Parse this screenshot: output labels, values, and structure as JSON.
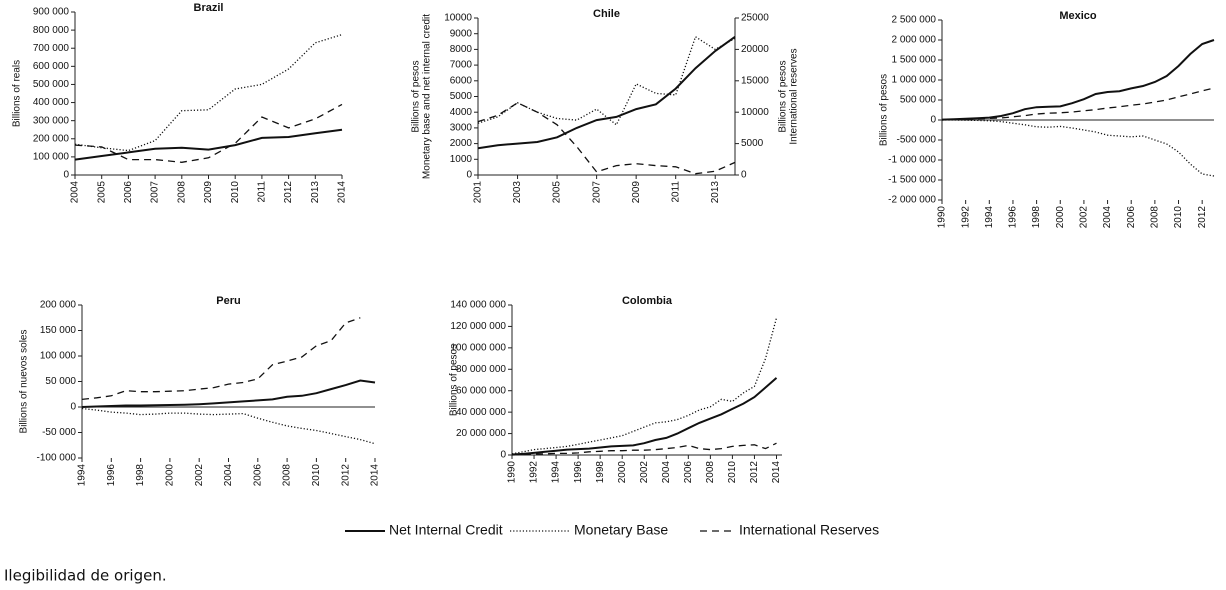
{
  "chart_data": [
    {
      "type": "line",
      "title": "Brazil",
      "ylabel": [
        "Billions of reals"
      ],
      "x": [
        2004,
        2005,
        2006,
        2007,
        2008,
        2009,
        2010,
        2011,
        2012,
        2013,
        2014
      ],
      "xlim": [
        2004,
        2014
      ],
      "xticks": [
        2004,
        2005,
        2006,
        2007,
        2008,
        2009,
        2010,
        2011,
        2012,
        2013,
        2014
      ],
      "ylim": [
        0,
        900000
      ],
      "yticks": [
        0,
        {
          "value": 100000,
          "label": "100 000"
        },
        {
          "value": 200000,
          "label": "200 000"
        },
        {
          "value": 300000,
          "label": "300 000"
        },
        {
          "value": 400000,
          "label": "400 000"
        },
        {
          "value": 500000,
          "label": "500 000"
        },
        {
          "value": 600000,
          "label": "600 000"
        },
        {
          "value": 700000,
          "label": "700 000"
        },
        {
          "value": 800000,
          "label": "800 000"
        },
        {
          "value": 900000,
          "label": "900 000"
        }
      ],
      "series": [
        {
          "name": "Net Internal Credit",
          "color": "#111111",
          "line_style": "solid",
          "values": [
            85000,
            105000,
            125000,
            145000,
            150000,
            140000,
            165000,
            205000,
            210000,
            230000,
            250000
          ]
        },
        {
          "name": "Monetary Base",
          "color": "#111111",
          "line_style": "dotted",
          "values": [
            170000,
            150000,
            135000,
            190000,
            355000,
            360000,
            475000,
            500000,
            585000,
            730000,
            775000
          ]
        },
        {
          "name": "International Reserves",
          "color": "#111111",
          "line_style": "dashed",
          "values": [
            165000,
            155000,
            85000,
            85000,
            70000,
            95000,
            175000,
            320000,
            260000,
            310000,
            390000
          ]
        }
      ]
    },
    {
      "type": "line",
      "title": "Chile",
      "ylabel": [
        "Billions of pesos",
        "Monetary base and net internal credit"
      ],
      "y2label": [
        "Billions of pesos",
        "International reserves"
      ],
      "x": [
        2001,
        2002,
        2003,
        2004,
        2005,
        2006,
        2007,
        2008,
        2009,
        2010,
        2011,
        2012,
        2013,
        2014
      ],
      "xlim": [
        2001,
        2014
      ],
      "xticks": [
        2001,
        2003,
        2005,
        2007,
        2009,
        2011,
        2013
      ],
      "ylim": [
        0,
        10000
      ],
      "yticks": [
        0,
        1000,
        2000,
        3000,
        4000,
        5000,
        6000,
        7000,
        8000,
        9000,
        10000
      ],
      "y2lim": [
        0,
        25000
      ],
      "y2ticks": [
        0,
        5000,
        10000,
        15000,
        20000,
        25000
      ],
      "series": [
        {
          "name": "Net Internal Credit",
          "color": "#111111",
          "line_style": "solid",
          "values": [
            1700,
            1900,
            2000,
            2100,
            2400,
            3000,
            3500,
            3700,
            4200,
            4500,
            5500,
            6800,
            7900,
            8800
          ]
        },
        {
          "name": "Monetary Base",
          "color": "#111111",
          "line_style": "dotted",
          "values": [
            3300,
            3700,
            4600,
            4000,
            3600,
            3500,
            4200,
            3200,
            5800,
            5200,
            5100,
            8800,
            8000,
            8700
          ]
        },
        {
          "name": "International Reserves",
          "color": "#111111",
          "line_style": "dashed",
          "axis": "y2",
          "values": [
            8500,
            9500,
            11500,
            10000,
            8000,
            4500,
            500,
            1500,
            1800,
            1500,
            1300,
            200,
            600,
            2000
          ]
        }
      ]
    },
    {
      "type": "line",
      "title": "Mexico",
      "ylabel": [
        "Billions of pesos"
      ],
      "x": [
        1990,
        1991,
        1992,
        1993,
        1994,
        1995,
        1996,
        1997,
        1998,
        1999,
        2000,
        2001,
        2002,
        2003,
        2004,
        2005,
        2006,
        2007,
        2008,
        2009,
        2010,
        2011,
        2012,
        2013
      ],
      "xlim": [
        1990,
        2013
      ],
      "xticks": [
        1990,
        1992,
        1994,
        1996,
        1998,
        2000,
        2002,
        2004,
        2006,
        2008,
        2010,
        2012
      ],
      "ylim": [
        -2000000,
        2500000
      ],
      "yticks": [
        {
          "value": -2000000,
          "label": "-2 000 000"
        },
        {
          "value": -1500000,
          "label": "-1 500 000"
        },
        {
          "value": -1000000,
          "label": "-1 000 000"
        },
        {
          "value": -500000,
          "label": "-500 000"
        },
        0,
        {
          "value": 500000,
          "label": "500 000"
        },
        {
          "value": 1000000,
          "label": "1 000 000"
        },
        {
          "value": 1500000,
          "label": "1 500 000"
        },
        {
          "value": 2000000,
          "label": "2 000 000"
        },
        {
          "value": 2500000,
          "label": "2 500 000"
        }
      ],
      "series": [
        {
          "name": "Net Internal Credit",
          "color": "#111111",
          "line_style": "solid",
          "values": [
            10000,
            20000,
            30000,
            45000,
            60000,
            100000,
            170000,
            270000,
            320000,
            330000,
            340000,
            420000,
            520000,
            650000,
            700000,
            720000,
            790000,
            850000,
            950000,
            1100000,
            1350000,
            1650000,
            1900000,
            2000000
          ]
        },
        {
          "name": "Monetary Base",
          "color": "#111111",
          "line_style": "dotted",
          "values": [
            0,
            0,
            -5000,
            -10000,
            -20000,
            -40000,
            -80000,
            -120000,
            -170000,
            -180000,
            -160000,
            -200000,
            -250000,
            -300000,
            -380000,
            -400000,
            -420000,
            -400000,
            -500000,
            -600000,
            -800000,
            -1100000,
            -1350000,
            -1400000
          ]
        },
        {
          "name": "International Reserves",
          "color": "#111111",
          "line_style": "dashed",
          "values": [
            0,
            10000,
            20000,
            30000,
            40000,
            50000,
            80000,
            110000,
            150000,
            170000,
            180000,
            200000,
            230000,
            260000,
            300000,
            330000,
            370000,
            400000,
            450000,
            500000,
            580000,
            650000,
            730000,
            800000
          ]
        }
      ]
    },
    {
      "type": "line",
      "title": "Peru",
      "ylabel": [
        "Billions of nuevos soles"
      ],
      "x": [
        1994,
        1995,
        1996,
        1997,
        1998,
        1999,
        2000,
        2001,
        2002,
        2003,
        2004,
        2005,
        2006,
        2007,
        2008,
        2009,
        2010,
        2011,
        2012,
        2013,
        2014
      ],
      "xlim": [
        1994,
        2014
      ],
      "xticks": [
        1994,
        1996,
        1998,
        2000,
        2002,
        2004,
        2006,
        2008,
        2010,
        2012,
        2014
      ],
      "ylim": [
        -100000,
        200000
      ],
      "yticks": [
        {
          "value": -100000,
          "label": "-100 000"
        },
        {
          "value": -50000,
          "label": "-50 000"
        },
        0,
        {
          "value": 50000,
          "label": "50 000"
        },
        {
          "value": 100000,
          "label": "100 000"
        },
        {
          "value": 150000,
          "label": "150 000"
        },
        {
          "value": 200000,
          "label": "200 000"
        }
      ],
      "series": [
        {
          "name": "Net Internal Credit",
          "color": "#111111",
          "line_style": "solid",
          "values": [
            0,
            1000,
            2000,
            3000,
            3000,
            3500,
            4000,
            4500,
            5500,
            7000,
            9000,
            11000,
            13000,
            15000,
            20000,
            22000,
            27000,
            35000,
            43000,
            52000,
            48000
          ]
        },
        {
          "name": "Monetary Base",
          "color": "#111111",
          "line_style": "dotted",
          "values": [
            -3000,
            -6000,
            -10000,
            -12000,
            -15000,
            -14000,
            -12000,
            -12000,
            -14000,
            -15000,
            -14000,
            -13000,
            -22000,
            -30000,
            -37000,
            -42000,
            -46000,
            -52000,
            -58000,
            -64000,
            -72000
          ]
        },
        {
          "name": "International Reserves",
          "color": "#111111",
          "line_style": "dashed",
          "values": [
            15000,
            18000,
            22000,
            32000,
            30000,
            30000,
            31000,
            32000,
            35000,
            38000,
            45000,
            48000,
            55000,
            83000,
            90000,
            98000,
            120000,
            130000,
            165000,
            175000,
            null
          ]
        }
      ]
    },
    {
      "type": "line",
      "title": "Colombia",
      "ylabel": [
        "Billions of pesos"
      ],
      "x": [
        1990,
        1991,
        1992,
        1993,
        1994,
        1995,
        1996,
        1997,
        1998,
        1999,
        2000,
        2001,
        2002,
        2003,
        2004,
        2005,
        2006,
        2007,
        2008,
        2009,
        2010,
        2011,
        2012,
        2013,
        2014
      ],
      "xlim": [
        1990,
        2014.5
      ],
      "xticks": [
        1990,
        1992,
        1994,
        1996,
        1998,
        2000,
        2002,
        2004,
        2006,
        2008,
        2010,
        2012,
        2014
      ],
      "ylim": [
        0,
        140000000
      ],
      "yticks": [
        0,
        {
          "value": 20000000,
          "label": "20 000 000"
        },
        {
          "value": 40000000,
          "label": "40 000 000"
        },
        {
          "value": 60000000,
          "label": "60 000 000"
        },
        {
          "value": 80000000,
          "label": "80 000 000"
        },
        {
          "value": 100000000,
          "label": "100 000 000"
        },
        {
          "value": 120000000,
          "label": "120 000 000"
        },
        {
          "value": 140000000,
          "label": "140 000 000"
        }
      ],
      "series": [
        {
          "name": "Net Internal Credit",
          "color": "#111111",
          "line_style": "solid",
          "values": [
            500000,
            1000000,
            2000000,
            3000000,
            4000000,
            5000000,
            5500000,
            6000000,
            7000000,
            8000000,
            8500000,
            9000000,
            11000000,
            14000000,
            16000000,
            20000000,
            25000000,
            30000000,
            34000000,
            38000000,
            43000000,
            48000000,
            54000000,
            63000000,
            72000000
          ]
        },
        {
          "name": "Monetary Base",
          "color": "#111111",
          "line_style": "dotted",
          "values": [
            1000000,
            3000000,
            5000000,
            6000000,
            7000000,
            8000000,
            10000000,
            12000000,
            14000000,
            16000000,
            18000000,
            22000000,
            26000000,
            30000000,
            31000000,
            33000000,
            37000000,
            42000000,
            45000000,
            52000000,
            50000000,
            58000000,
            64000000,
            90000000,
            128000000
          ]
        },
        {
          "name": "International Reserves",
          "color": "#111111",
          "line_style": "dashed",
          "values": [
            0,
            500000,
            1000000,
            1000000,
            1500000,
            1500000,
            2000000,
            3000000,
            3500000,
            4000000,
            4000000,
            4500000,
            4500000,
            5000000,
            6000000,
            7000000,
            9000000,
            6000000,
            5000000,
            6000000,
            8000000,
            9000000,
            9500000,
            6000000,
            11000000
          ]
        }
      ]
    }
  ],
  "caption": "Ilegibilidad de origen."
}
